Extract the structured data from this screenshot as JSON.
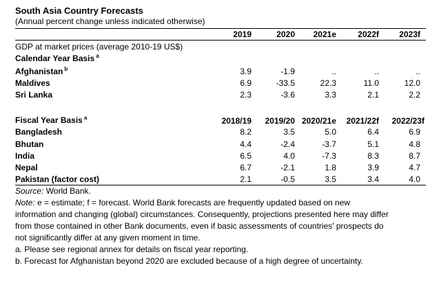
{
  "title": "South Asia Country Forecasts",
  "subtitle": "(Annual percent change unless indicated otherwise)",
  "calendar": {
    "years": [
      "2019",
      "2020",
      "2021e",
      "2022f",
      "2023f"
    ],
    "gdp_label": "GDP at market prices (average 2010-19 US$)",
    "section_label": "Calendar Year Basis",
    "section_sup": "a",
    "rows": [
      {
        "country": "Afghanistan",
        "sup": "b",
        "values": [
          "3.9",
          "-1.9",
          "..",
          "..",
          ".."
        ]
      },
      {
        "country": "Maldives",
        "sup": "",
        "values": [
          "6.9",
          "-33.5",
          "22.3",
          "11.0",
          "12.0"
        ]
      },
      {
        "country": "Sri Lanka",
        "sup": "",
        "values": [
          "2.3",
          "-3.6",
          "3.3",
          "2.1",
          "2.2"
        ]
      }
    ]
  },
  "fiscal": {
    "section_label": "Fiscal Year Basis",
    "section_sup": "a",
    "years": [
      "2018/19",
      "2019/20",
      "2020/21e",
      "2021/22f",
      "2022/23f"
    ],
    "rows": [
      {
        "country": "Bangladesh",
        "values": [
          "8.2",
          "3.5",
          "5.0",
          "6.4",
          "6.9"
        ]
      },
      {
        "country": "Bhutan",
        "values": [
          "4.4",
          "-2.4",
          "-3.7",
          "5.1",
          "4.8"
        ]
      },
      {
        "country": "India",
        "values": [
          "6.5",
          "4.0",
          "-7.3",
          "8.3",
          "8.7"
        ]
      },
      {
        "country": "Nepal",
        "values": [
          "6.7",
          "-2.1",
          "1.8",
          "3.9",
          "4.7"
        ]
      },
      {
        "country": "Pakistan (factor cost)",
        "values": [
          "2.1",
          "-0.5",
          "3.5",
          "3.4",
          "4.0"
        ]
      }
    ]
  },
  "notes": {
    "source_label": "Source:",
    "source_text": " World Bank.",
    "note_label": "Note:",
    "note_lines": [
      " e = estimate; f = forecast. World Bank forecasts are frequently updated based on new",
      "information and changing (global) circumstances. Consequently, projections presented here may differ",
      "from those contained in other Bank documents, even if basic assessments of countries' prospects do",
      "not significantly differ at any given moment in time."
    ],
    "footnote_a": "a. Please see regional annex for details on fiscal year reporting.",
    "footnote_b": "b. Forecast for Afghanistan beyond 2020 are excluded because of a high degree of uncertainty."
  }
}
